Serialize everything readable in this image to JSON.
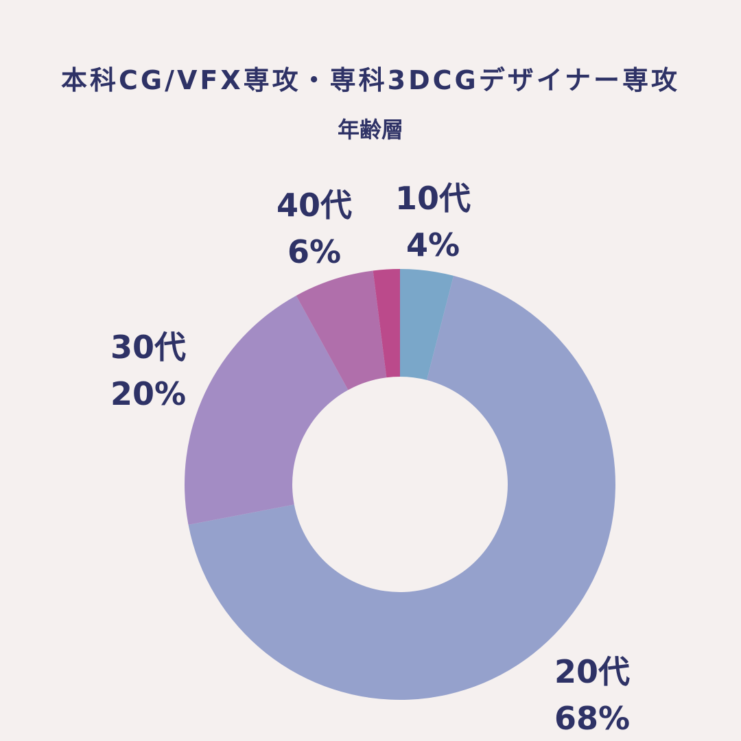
{
  "title": "本科CG/VFX専攻・専科3DCGデザイナー専攻",
  "subtitle": "年齢層",
  "chart_data": {
    "type": "pie",
    "donut": true,
    "title": "本科CG/VFX専攻・専科3DCGデザイナー専攻",
    "subtitle": "年齢層",
    "slices": [
      {
        "label": "10代",
        "value": 4,
        "value_label": "4%",
        "color": "#7aa7c9"
      },
      {
        "label": "20代",
        "value": 68,
        "value_label": "68%",
        "color": "#95a1cc"
      },
      {
        "label": "30代",
        "value": 20,
        "value_label": "20%",
        "color": "#a38cc4"
      },
      {
        "label": "40代",
        "value": 6,
        "value_label": "6%",
        "color": "#b06fab"
      },
      {
        "label": "",
        "value": 2,
        "value_label": "",
        "color": "#bb4a8b"
      }
    ],
    "legend": "none",
    "start": "top",
    "direction": "clockwise"
  }
}
